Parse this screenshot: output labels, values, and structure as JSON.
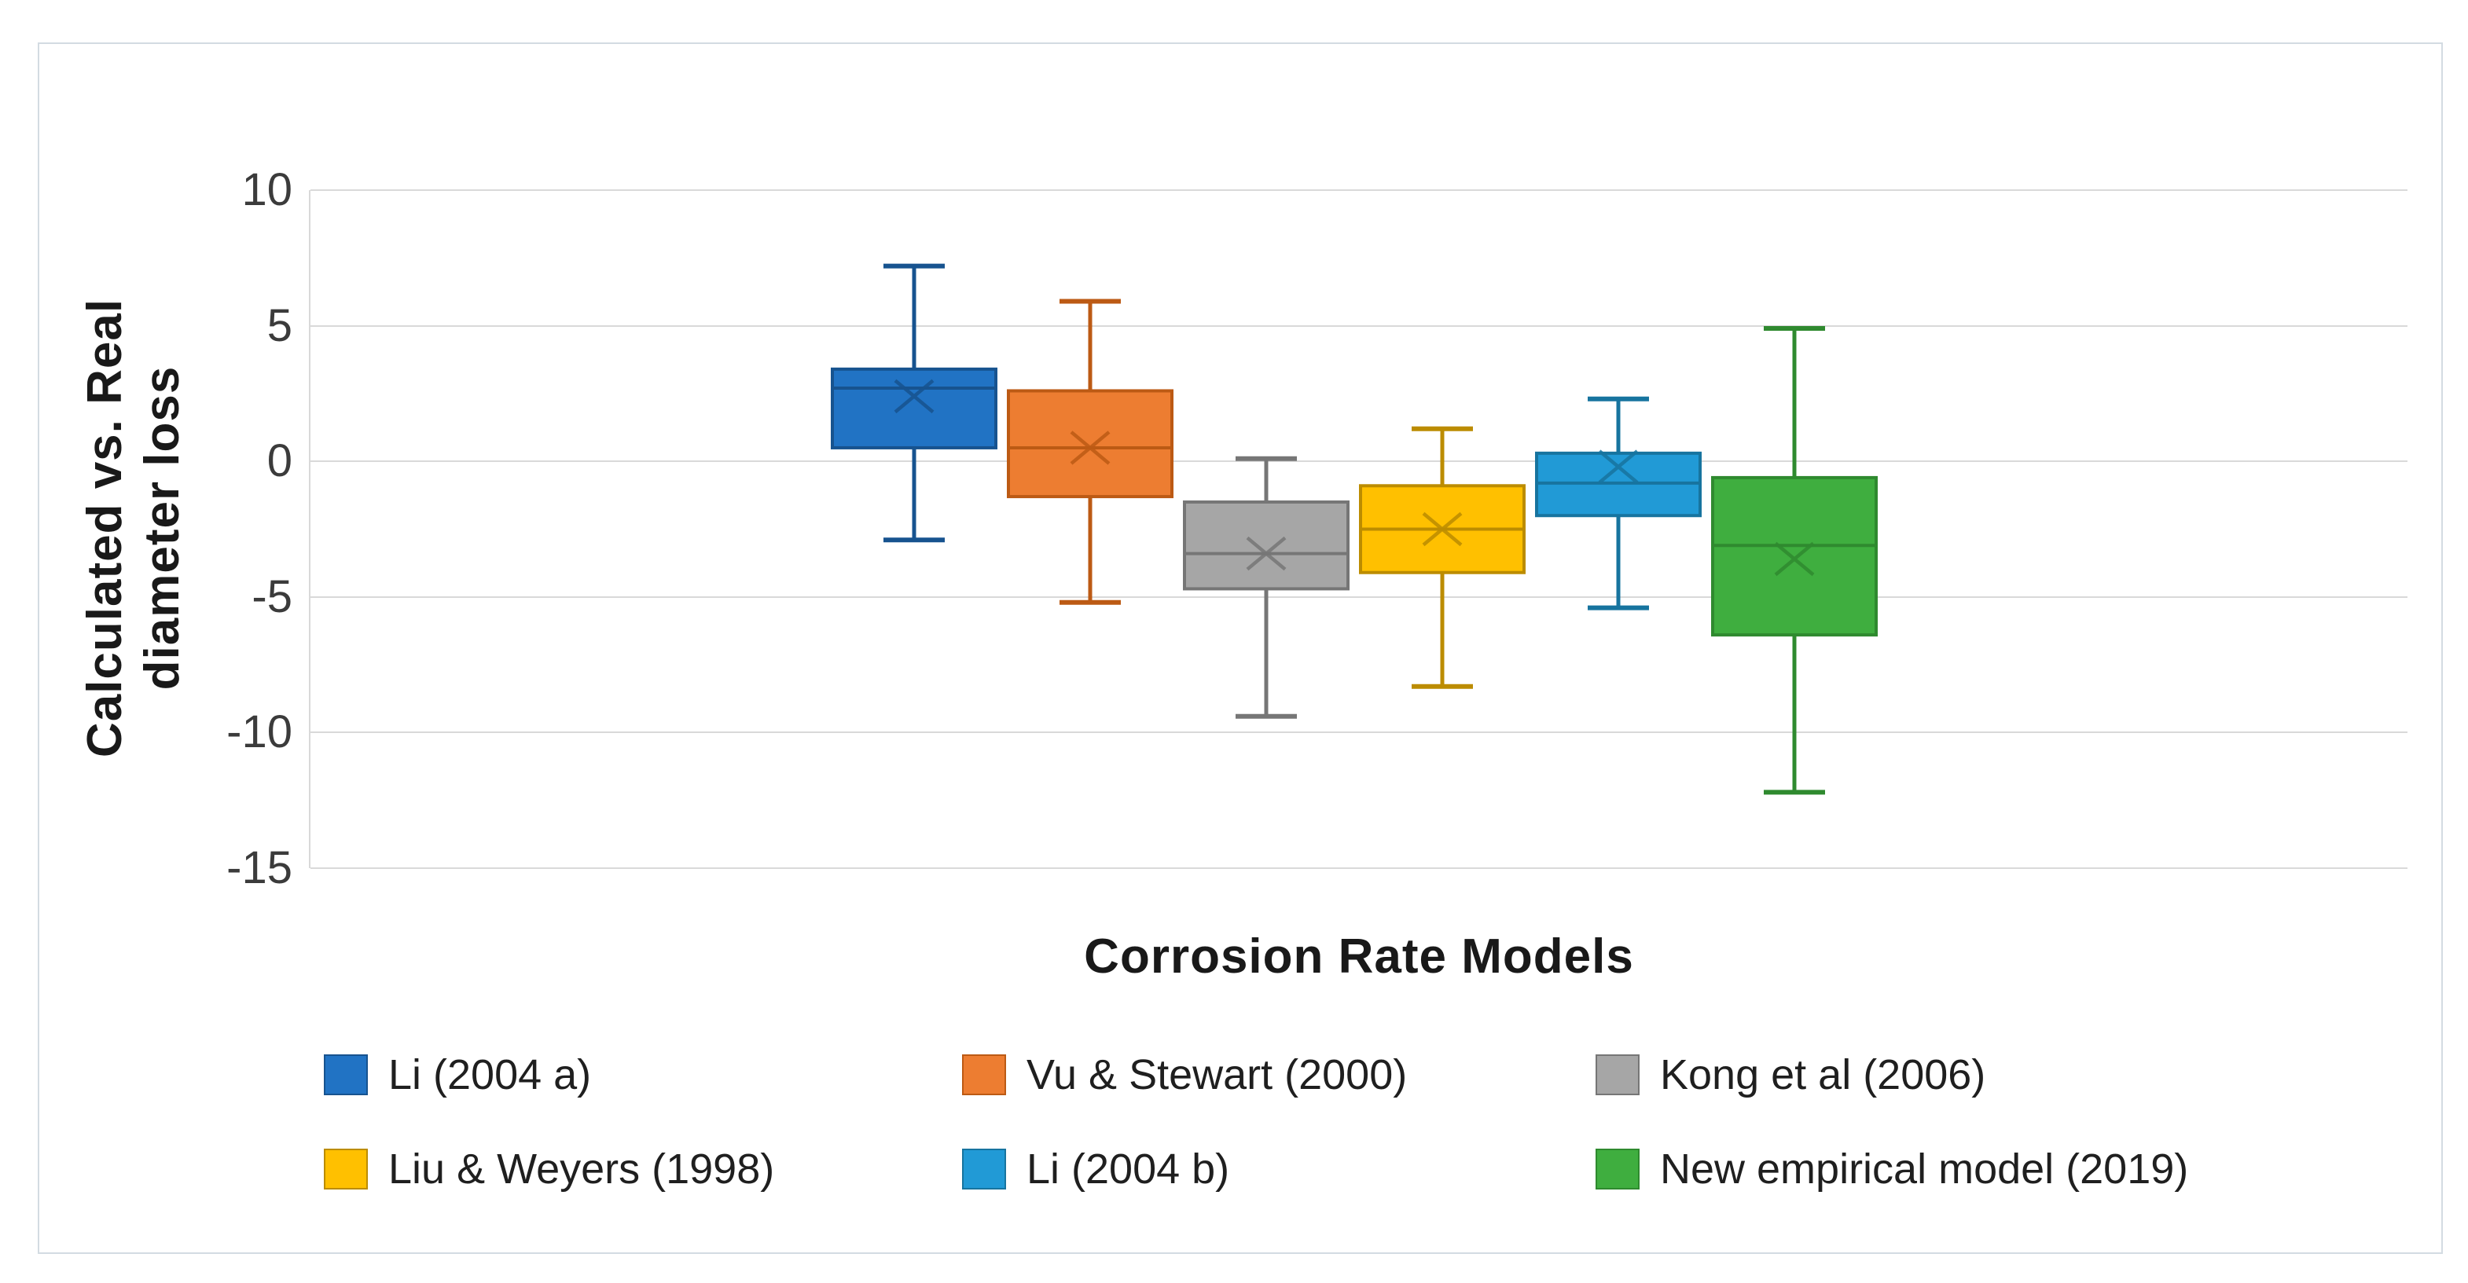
{
  "figure": {
    "background": "#FFFFFF",
    "frame_border_color": "#D3DBE2",
    "gridline_color": "#D9D9D9"
  },
  "axis": {
    "y_title": "Calculated vs. Real diameter loss",
    "y_title_lines": [
      "Calculated vs. Real",
      "diameter loss"
    ],
    "x_title": "Corrosion Rate Models",
    "y_ticks": [
      "10",
      "5",
      "0",
      "-5",
      "-10",
      "-15"
    ]
  },
  "chart_data": {
    "type": "boxplot",
    "title": "",
    "xlabel": "Corrosion Rate Models",
    "ylabel": "Calculated vs. Real diameter loss",
    "ylim": [
      -15,
      10
    ],
    "yticks": [
      10,
      5,
      0,
      -5,
      -10,
      -15
    ],
    "grid": "horizontal-only",
    "legend_position": "bottom",
    "mean_marker": "x",
    "categories": [
      "Li (2004 a)",
      "Vu & Stewart (2000)",
      "Kong et al (2006)",
      "Liu & Weyers (1998)",
      "Li (2004 b)",
      "New empirical model (2019)"
    ],
    "series": [
      {
        "name": "Li (2004 a)",
        "min": -2.9,
        "q1": 0.5,
        "median": 2.7,
        "mean": 2.4,
        "q3": 3.4,
        "max": 7.2,
        "fill": "#2173C4",
        "stroke": "#17538F"
      },
      {
        "name": "Vu & Stewart (2000)",
        "min": -5.2,
        "q1": -1.3,
        "median": 0.5,
        "mean": 0.5,
        "q3": 2.6,
        "max": 5.9,
        "fill": "#ED7D31",
        "stroke": "#BC5A14"
      },
      {
        "name": "Kong et al (2006)",
        "min": -9.4,
        "q1": -4.7,
        "median": -3.4,
        "mean": -3.4,
        "q3": -1.5,
        "max": 0.1,
        "fill": "#A6A6A6",
        "stroke": "#767676"
      },
      {
        "name": "Liu & Weyers (1998)",
        "min": -8.3,
        "q1": -4.1,
        "median": -2.5,
        "mean": -2.5,
        "q3": -0.9,
        "max": 1.2,
        "fill": "#FFC000",
        "stroke": "#BC8C00"
      },
      {
        "name": "Li (2004 b)",
        "min": -5.4,
        "q1": -2.0,
        "median": -0.8,
        "mean": -0.2,
        "q3": 0.3,
        "max": 2.3,
        "fill": "#219AD6",
        "stroke": "#17749F"
      },
      {
        "name": "New empirical model (2019)",
        "min": -12.2,
        "q1": -6.4,
        "median": -3.1,
        "mean": -3.6,
        "q3": -0.6,
        "max": 4.9,
        "fill": "#3FAE3F",
        "stroke": "#2F8A2F"
      }
    ]
  }
}
